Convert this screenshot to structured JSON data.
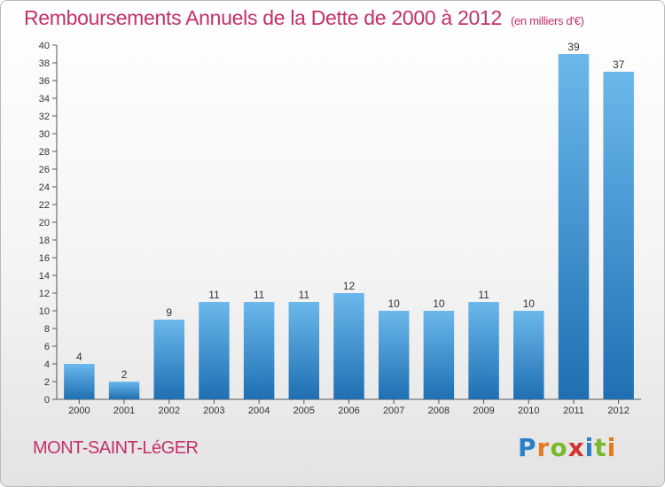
{
  "title": "Remboursements Annuels de la Dette de 2000 à 2012",
  "subtitle": "(en milliers d'€)",
  "commune": "MONT-SAINT-LéGER",
  "logo": {
    "text": "Proxiti",
    "letters": [
      "P",
      "r",
      "o",
      "x",
      "i",
      "t",
      "i"
    ],
    "colors": [
      "#2a7fc9",
      "#e07b20",
      "#7ab82d",
      "#d3342f",
      "#2a7fc9",
      "#7ab82d",
      "#e07b20"
    ]
  },
  "colors": {
    "bar_top": "#6bb8ec",
    "bar_bottom": "#1f6fb2",
    "axis": "#555555",
    "grid": "#dddddd",
    "title": "#c4306a"
  },
  "chart_data": {
    "type": "bar",
    "categories": [
      "2000",
      "2001",
      "2002",
      "2003",
      "2004",
      "2005",
      "2006",
      "2007",
      "2008",
      "2009",
      "2010",
      "2011",
      "2012"
    ],
    "values": [
      4,
      2,
      9,
      11,
      11,
      11,
      12,
      10,
      10,
      11,
      10,
      39,
      37
    ],
    "data_labels": [
      "4",
      "2",
      "9",
      "11",
      "11",
      "11",
      "12",
      "10",
      "10",
      "11",
      "10",
      "39",
      "37"
    ],
    "ylim": [
      0,
      40
    ],
    "yticks": [
      0,
      2,
      4,
      6,
      8,
      10,
      12,
      14,
      16,
      18,
      20,
      22,
      24,
      26,
      28,
      30,
      32,
      34,
      36,
      38,
      40
    ],
    "ytick_labels": [
      "0",
      "2",
      "4",
      "6",
      "8",
      "10",
      "12",
      "14",
      "16",
      "18",
      "20",
      "22",
      "24",
      "26",
      "28",
      "30",
      "32",
      "34",
      "36",
      "38",
      "40"
    ],
    "grid": false,
    "xlabel": "",
    "ylabel": ""
  }
}
